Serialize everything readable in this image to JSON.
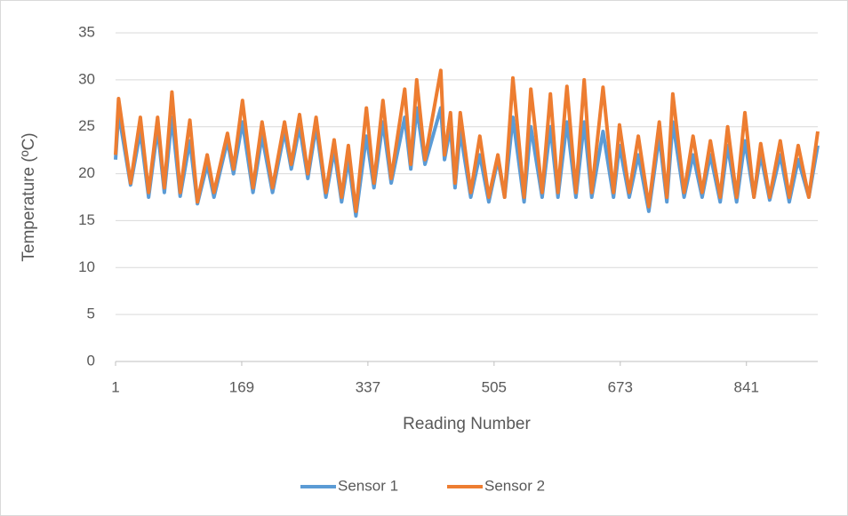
{
  "chart_data": {
    "type": "line",
    "x_label": "Reading Number",
    "y_label": "Temperature (ºC)",
    "x": [
      1,
      5,
      21,
      34,
      45,
      57,
      66,
      76,
      87,
      100,
      110,
      123,
      132,
      150,
      158,
      170,
      184,
      196,
      210,
      226,
      235,
      246,
      257,
      268,
      281,
      292,
      302,
      311,
      321,
      335,
      345,
      357,
      368,
      386,
      394,
      402,
      413,
      434,
      439,
      447,
      453,
      460,
      474,
      486,
      498,
      510,
      519,
      530,
      545,
      554,
      569,
      580,
      590,
      602,
      614,
      625,
      635,
      650,
      664,
      672,
      685,
      697,
      711,
      725,
      735,
      743,
      758,
      770,
      782,
      793,
      806,
      816,
      828,
      839,
      851,
      860,
      872,
      886,
      898,
      910,
      924,
      936
    ],
    "series": [
      {
        "name": "Sensor 1",
        "color": "#5b9bd5",
        "values": [
          21.5,
          26.5,
          18.8,
          24.5,
          17.5,
          24.8,
          18,
          26,
          17.6,
          23.5,
          16.8,
          21,
          17.5,
          23.5,
          20,
          25.5,
          18,
          24,
          18,
          24.5,
          20.5,
          25,
          19.5,
          25,
          17.5,
          22.5,
          17,
          21.5,
          15.5,
          24,
          18.5,
          25.5,
          19,
          26,
          20.5,
          27,
          21,
          27,
          21.5,
          25,
          18.5,
          24.5,
          17.5,
          22,
          17,
          21.5,
          17.5,
          26,
          17,
          25,
          17.5,
          25,
          17.5,
          25.5,
          17.5,
          25.5,
          17.5,
          24.5,
          17.5,
          23,
          17.5,
          22,
          16,
          24,
          17,
          25.5,
          17.5,
          22,
          17.5,
          22,
          17,
          23,
          17,
          23.5,
          17.5,
          22,
          17.2,
          22,
          17,
          21.5,
          17.5,
          23
        ]
      },
      {
        "name": "Sensor 2",
        "color": "#ed7d31",
        "values": [
          22,
          28,
          19,
          26,
          18,
          26,
          18.5,
          28.7,
          18,
          25.7,
          17,
          22,
          18,
          24.3,
          20.5,
          27.8,
          18.5,
          25.5,
          18.5,
          25.5,
          21,
          26.3,
          20,
          26,
          18,
          23.6,
          17.5,
          23,
          16,
          27,
          19,
          27.8,
          19.5,
          29,
          21,
          30,
          21.5,
          31,
          22,
          26.5,
          19,
          26.5,
          18,
          24,
          17.5,
          22,
          17.5,
          30.2,
          17.5,
          29,
          18,
          28.5,
          18,
          29.3,
          18,
          30,
          18,
          29.2,
          18,
          25.2,
          18,
          24,
          16.5,
          25.5,
          17.5,
          28.5,
          18,
          24,
          18,
          23.5,
          17.5,
          25,
          17.5,
          26.5,
          17.5,
          23.2,
          17.5,
          23.5,
          17.5,
          23,
          17.5,
          24.5
        ]
      }
    ],
    "xlim": [
      1,
      936
    ],
    "xticks": [
      1,
      169,
      337,
      505,
      673,
      841
    ],
    "ylim": [
      0,
      35
    ],
    "yticks": [
      0,
      5,
      10,
      15,
      20,
      25,
      30,
      35
    ],
    "grid": true,
    "legend": "bottom"
  }
}
